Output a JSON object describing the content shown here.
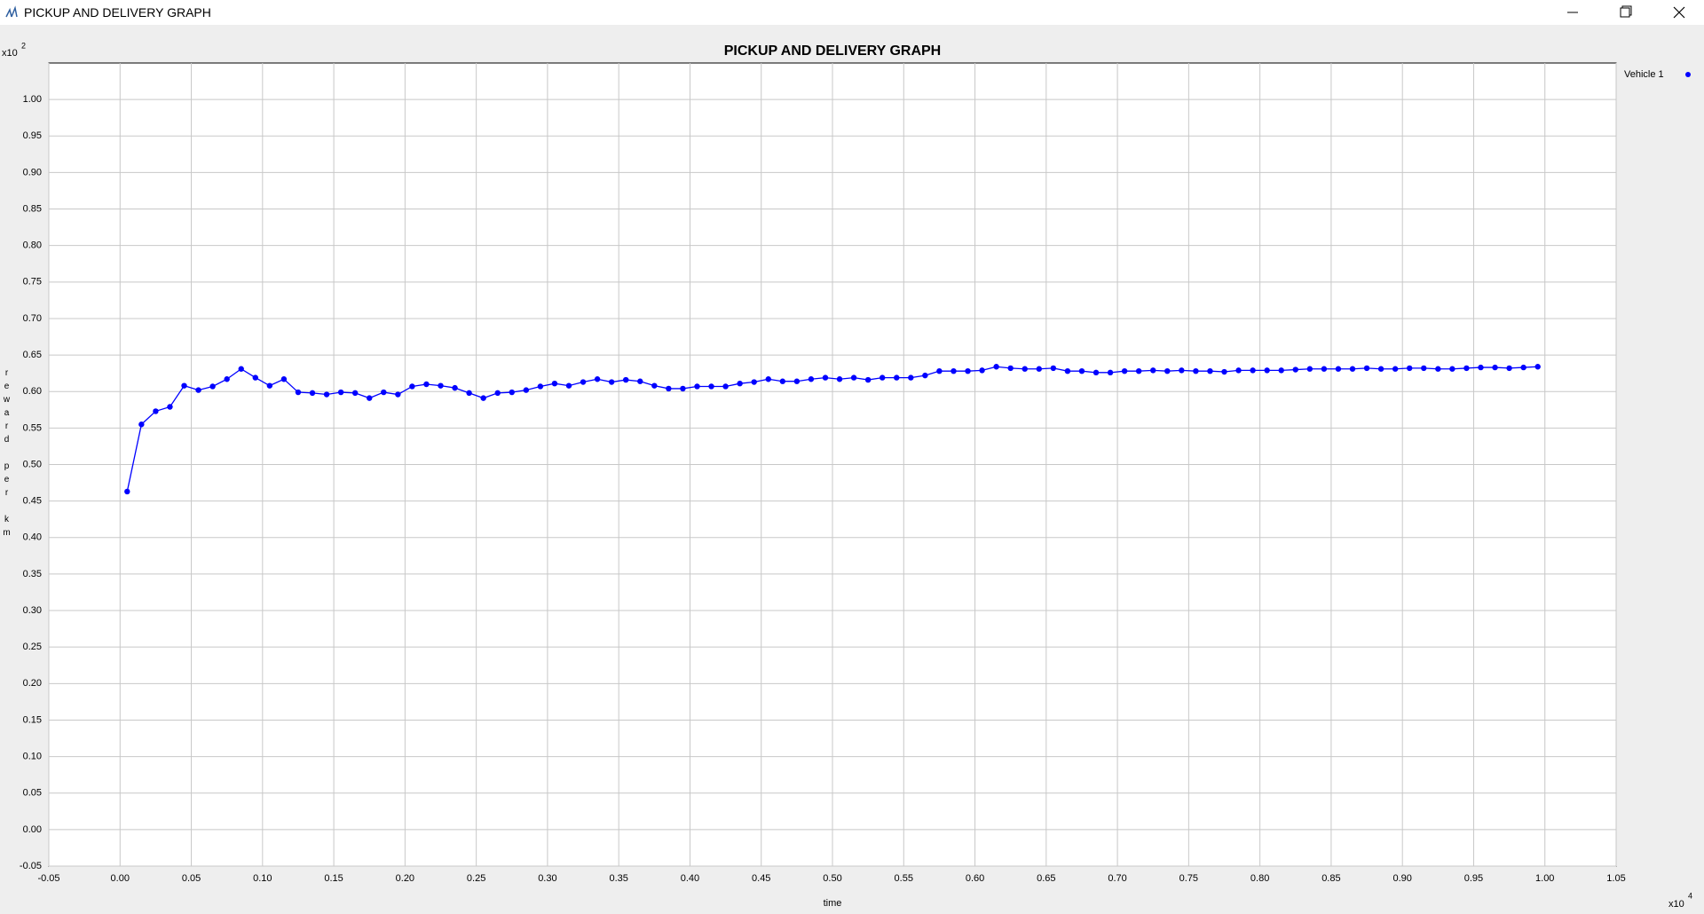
{
  "window": {
    "title": "PICKUP AND DELIVERY GRAPH"
  },
  "chart_data": {
    "type": "line",
    "title": "PICKUP AND DELIVERY GRAPH",
    "x_label": "time",
    "y_label": "reward per km",
    "x_multiplier": "x10",
    "x_multiplier_exp": "4",
    "y_multiplier": "x10",
    "y_multiplier_exp": "2",
    "grid": true,
    "legend": "top-right",
    "xlim": [
      -0.05,
      1.05
    ],
    "ylim": [
      -0.05,
      1.05
    ],
    "xticks": [
      {
        "value": -0.05,
        "label": "-0.05"
      },
      {
        "value": 0,
        "label": "0.00"
      },
      {
        "value": 0.05,
        "label": "0.05"
      },
      {
        "value": 0.1,
        "label": "0.10"
      },
      {
        "value": 0.15,
        "label": "0.15"
      },
      {
        "value": 0.2,
        "label": "0.20"
      },
      {
        "value": 0.25,
        "label": "0.25"
      },
      {
        "value": 0.3,
        "label": "0.30"
      },
      {
        "value": 0.35,
        "label": "0.35"
      },
      {
        "value": 0.4,
        "label": "0.40"
      },
      {
        "value": 0.45,
        "label": "0.45"
      },
      {
        "value": 0.5,
        "label": "0.50"
      },
      {
        "value": 0.55,
        "label": "0.55"
      },
      {
        "value": 0.6,
        "label": "0.60"
      },
      {
        "value": 0.65,
        "label": "0.65"
      },
      {
        "value": 0.7,
        "label": "0.70"
      },
      {
        "value": 0.75,
        "label": "0.75"
      },
      {
        "value": 0.8,
        "label": "0.80"
      },
      {
        "value": 0.85,
        "label": "0.85"
      },
      {
        "value": 0.9,
        "label": "0.90"
      },
      {
        "value": 0.95,
        "label": "0.95"
      },
      {
        "value": 1,
        "label": "1.00"
      },
      {
        "value": 1.05,
        "label": "1.05"
      }
    ],
    "yticks": [
      {
        "value": -0.05,
        "label": "-0.05"
      },
      {
        "value": 0,
        "label": "0.00"
      },
      {
        "value": 0.05,
        "label": "0.05"
      },
      {
        "value": 0.1,
        "label": "0.10"
      },
      {
        "value": 0.15,
        "label": "0.15"
      },
      {
        "value": 0.2,
        "label": "0.20"
      },
      {
        "value": 0.25,
        "label": "0.25"
      },
      {
        "value": 0.3,
        "label": "0.30"
      },
      {
        "value": 0.35,
        "label": "0.35"
      },
      {
        "value": 0.4,
        "label": "0.40"
      },
      {
        "value": 0.45,
        "label": "0.45"
      },
      {
        "value": 0.5,
        "label": "0.50"
      },
      {
        "value": 0.55,
        "label": "0.55"
      },
      {
        "value": 0.6,
        "label": "0.60"
      },
      {
        "value": 0.65,
        "label": "0.65"
      },
      {
        "value": 0.7,
        "label": "0.70"
      },
      {
        "value": 0.75,
        "label": "0.75"
      },
      {
        "value": 0.8,
        "label": "0.80"
      },
      {
        "value": 0.85,
        "label": "0.85"
      },
      {
        "value": 0.9,
        "label": "0.90"
      },
      {
        "value": 0.95,
        "label": "0.95"
      },
      {
        "value": 1,
        "label": "1.00"
      }
    ],
    "x": [
      0.005,
      0.015,
      0.025,
      0.035,
      0.045,
      0.055,
      0.065,
      0.075,
      0.085,
      0.095,
      0.105,
      0.115,
      0.125,
      0.135,
      0.145,
      0.155,
      0.165,
      0.175,
      0.185,
      0.195,
      0.205,
      0.215,
      0.225,
      0.235,
      0.245,
      0.255,
      0.265,
      0.275,
      0.285,
      0.295,
      0.305,
      0.315,
      0.325,
      0.335,
      0.345,
      0.355,
      0.365,
      0.375,
      0.385,
      0.395,
      0.405,
      0.415,
      0.425,
      0.435,
      0.445,
      0.455,
      0.465,
      0.475,
      0.485,
      0.495,
      0.505,
      0.515,
      0.525,
      0.535,
      0.545,
      0.555,
      0.565,
      0.575,
      0.585,
      0.595,
      0.605,
      0.615,
      0.625,
      0.635,
      0.645,
      0.655,
      0.665,
      0.675,
      0.685,
      0.695,
      0.705,
      0.715,
      0.725,
      0.735,
      0.745,
      0.755,
      0.765,
      0.775,
      0.785,
      0.795,
      0.805,
      0.815,
      0.825,
      0.835,
      0.845,
      0.855,
      0.865,
      0.875,
      0.885,
      0.895,
      0.905,
      0.915,
      0.925,
      0.935,
      0.945,
      0.955,
      0.965,
      0.975,
      0.985,
      0.995
    ],
    "series": [
      {
        "name": "Vehicle 1",
        "color": "#0000ff",
        "values": [
          0.463,
          0.555,
          0.573,
          0.579,
          0.608,
          0.602,
          0.607,
          0.617,
          0.631,
          0.619,
          0.608,
          0.617,
          0.599,
          0.598,
          0.596,
          0.599,
          0.598,
          0.591,
          0.599,
          0.596,
          0.607,
          0.61,
          0.608,
          0.605,
          0.598,
          0.591,
          0.598,
          0.599,
          0.602,
          0.607,
          0.611,
          0.608,
          0.613,
          0.617,
          0.613,
          0.616,
          0.614,
          0.608,
          0.604,
          0.604,
          0.607,
          0.607,
          0.607,
          0.611,
          0.613,
          0.617,
          0.614,
          0.614,
          0.617,
          0.619,
          0.617,
          0.619,
          0.616,
          0.619,
          0.619,
          0.619,
          0.622,
          0.628,
          0.628,
          0.628,
          0.629,
          0.634,
          0.632,
          0.631,
          0.631,
          0.632,
          0.628,
          0.628,
          0.626,
          0.626,
          0.628,
          0.628,
          0.629,
          0.628,
          0.629,
          0.628,
          0.628,
          0.627,
          0.629,
          0.629,
          0.629,
          0.629,
          0.63,
          0.631,
          0.631,
          0.631,
          0.631,
          0.632,
          0.631,
          0.631,
          0.632,
          0.632,
          0.631,
          0.631,
          0.632,
          0.633,
          0.633,
          0.632,
          0.633,
          0.634
        ]
      }
    ]
  }
}
